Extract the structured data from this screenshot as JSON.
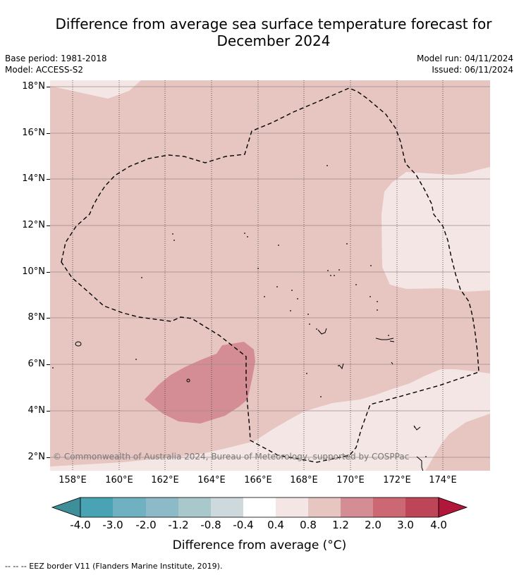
{
  "title_line1": "Difference from average sea surface temperature forecast for",
  "title_line2": "December 2024",
  "meta": {
    "base_period": "Base period: 1981-2018",
    "model": "Model: ACCESS-S2",
    "model_run": "Model run: 04/11/2024",
    "issued": "Issued: 06/11/2024"
  },
  "map": {
    "lat_labels": [
      "18°N",
      "16°N",
      "14°N",
      "12°N",
      "10°N",
      "8°N",
      "6°N",
      "4°N",
      "2°N"
    ],
    "lon_labels": [
      "158°E",
      "160°E",
      "162°E",
      "164°E",
      "166°E",
      "168°E",
      "170°E",
      "172°E",
      "174°E"
    ],
    "copyright": "© Commonwealth of Australia 2024, Bureau of Meteorology, supported by COSPPac",
    "region_colors": {
      "anomaly_0_4_to_0_8": "#f4e6e5",
      "anomaly_0_8_to_1_2": "#e7c5c1",
      "anomaly_1_2_to_2_0": "#d58d95"
    }
  },
  "colorbar": {
    "labels": [
      "-4.0",
      "-3.0",
      "-2.0",
      "-1.2",
      "-0.8",
      "-0.4",
      "0.4",
      "0.8",
      "1.2",
      "2.0",
      "3.0",
      "4.0"
    ],
    "colors": [
      "#3e8f99",
      "#4aa2b5",
      "#6fb1c0",
      "#8cbac6",
      "#a8c8cc",
      "#cdd9dc",
      "#ffffff",
      "#f4e6e5",
      "#e7c5c1",
      "#d58d95",
      "#cb6874",
      "#be4557",
      "#b0173a"
    ],
    "title": "Difference from average (°C)"
  },
  "footer": "--  --  -- EEZ border V11 (Flanders Marine Institute, 2019)."
}
